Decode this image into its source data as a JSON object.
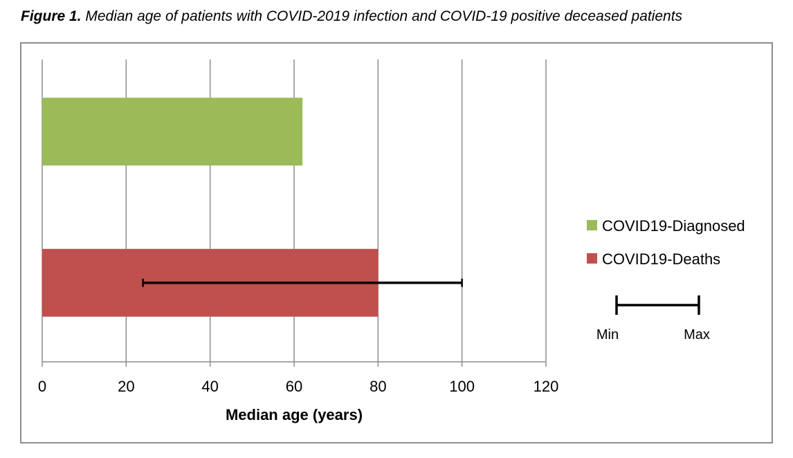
{
  "figure": {
    "title_prefix": "Figure 1.",
    "title_text": " Median age of patients with COVID-2019 infection and COVID-19 positive deceased patients"
  },
  "chart_data": {
    "type": "bar",
    "orientation": "horizontal",
    "xlabel": "Median age (years)",
    "xlim": [
      0,
      120
    ],
    "xticks": [
      0,
      20,
      40,
      60,
      80,
      100,
      120
    ],
    "grid": true,
    "legend_position": "right",
    "series": [
      {
        "name": "COVID19-Diagnosed",
        "value": 62,
        "color": "#9bbb59"
      },
      {
        "name": "COVID19-Deaths",
        "value": 80,
        "color": "#c0504d",
        "min": 24,
        "max": 100
      }
    ],
    "range_legend": {
      "min_label": "Min",
      "max_label": "Max"
    }
  }
}
